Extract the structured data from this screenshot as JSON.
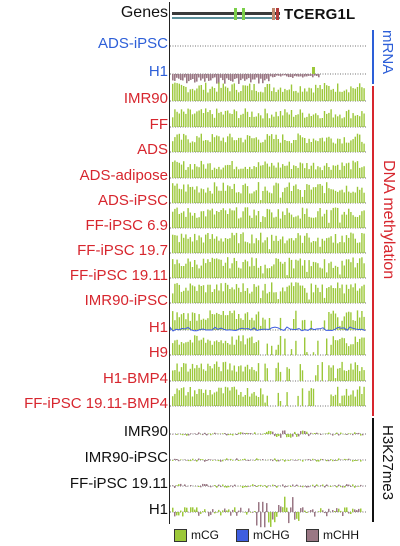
{
  "header": {
    "genes_label": "Genes",
    "gene_name": "TCERG1L"
  },
  "tracks": [
    {
      "label": "ADS-iPSC",
      "color": "blue",
      "type": "mrna",
      "level": 0.05
    },
    {
      "label": "H1",
      "color": "blue",
      "type": "mrna",
      "level": 0.4
    },
    {
      "label": "IMR90",
      "color": "red",
      "type": "meth",
      "level": 0.85
    },
    {
      "label": "FF",
      "color": "red",
      "type": "meth",
      "level": 0.85
    },
    {
      "label": "ADS",
      "color": "red",
      "type": "meth",
      "level": 0.85
    },
    {
      "label": "ADS-adipose",
      "color": "red",
      "type": "meth",
      "level": 0.8
    },
    {
      "label": "ADS-iPSC",
      "color": "red",
      "type": "meth",
      "level": 0.95
    },
    {
      "label": "FF-iPSC 6.9",
      "color": "red",
      "type": "meth",
      "level": 0.95
    },
    {
      "label": "FF-iPSC 19.7",
      "color": "red",
      "type": "meth",
      "level": 0.95
    },
    {
      "label": "FF-iPSC 19.11",
      "color": "red",
      "type": "meth",
      "level": 0.95
    },
    {
      "label": "IMR90-iPSC",
      "color": "red",
      "type": "meth",
      "level": 0.95
    },
    {
      "label": "H1",
      "color": "red",
      "type": "meth",
      "level": 0.9
    },
    {
      "label": "H9",
      "color": "red",
      "type": "meth",
      "level": 0.9
    },
    {
      "label": "H1-BMP4",
      "color": "red",
      "type": "meth",
      "level": 0.9
    },
    {
      "label": "FF-iPSC 19.11-BMP4",
      "color": "red",
      "type": "meth",
      "level": 0.9
    },
    {
      "label": "IMR90",
      "color": "black",
      "type": "k27",
      "level": 0.3
    },
    {
      "label": "IMR90-iPSC",
      "color": "black",
      "type": "k27",
      "level": 0.3
    },
    {
      "label": "FF-iPSC 19.11",
      "color": "black",
      "type": "k27",
      "level": 0.35
    },
    {
      "label": "H1",
      "color": "black",
      "type": "k27",
      "level": 0.8
    }
  ],
  "side_labels": {
    "mrna": "mRNA",
    "dna_meth": "DNA methylation",
    "k27": "H3K27me3"
  },
  "legend": [
    {
      "label": "mCG",
      "color": "#9cc83a"
    },
    {
      "label": "mCHG",
      "color": "#3f5ee0"
    },
    {
      "label": "mCHH",
      "color": "#9a7784"
    }
  ],
  "colors": {
    "red": "#d7262e",
    "blue": "#2d5fd8",
    "green": "#9cc83a",
    "purple": "#9a7784",
    "black": "#111111"
  }
}
